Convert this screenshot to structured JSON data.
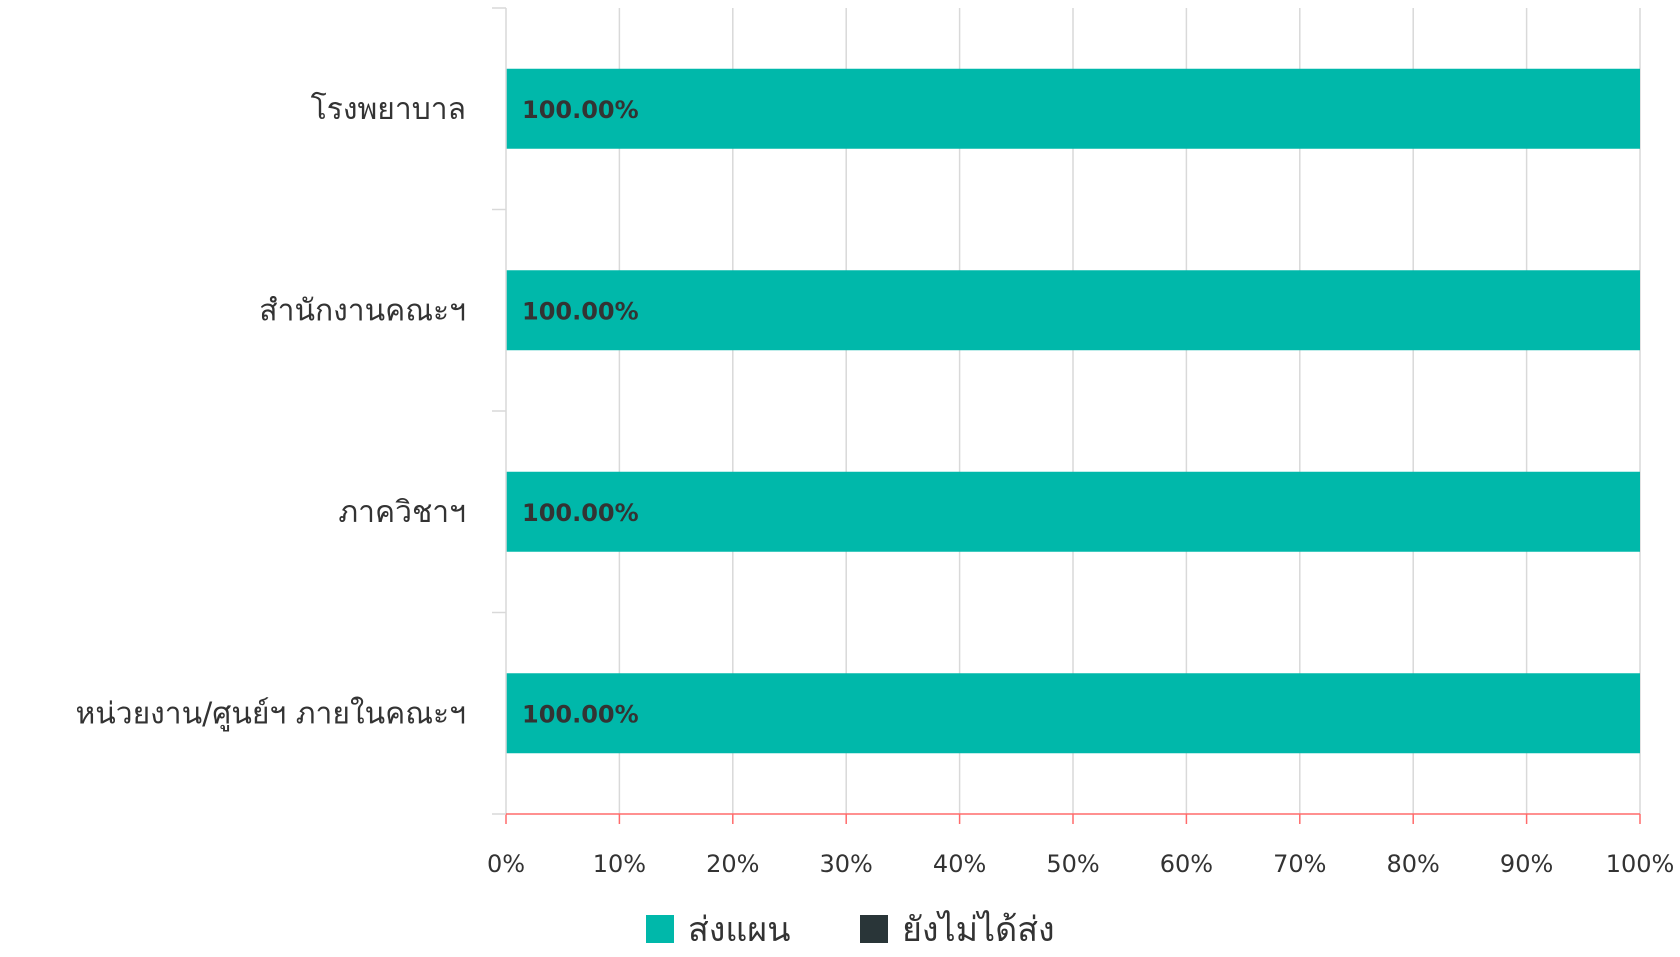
{
  "chart_data": {
    "type": "bar",
    "orientation": "horizontal",
    "stacked": true,
    "categories": [
      "โรงพยาบาล",
      "สำนักงานคณะฯ",
      "ภาควิชาฯ",
      "หน่วยงาน/ศูนย์ฯ ภายในคณะฯ"
    ],
    "series": [
      {
        "name": "ส่งแผน",
        "values": [
          100,
          100,
          100,
          100
        ],
        "color": "#00B8AA"
      },
      {
        "name": "ยังไม่ได้ส่ง",
        "values": [
          0,
          0,
          0,
          0
        ],
        "color": "#293538"
      }
    ],
    "data_labels": [
      "100.00%",
      "100.00%",
      "100.00%",
      "100.00%"
    ],
    "xlim": [
      0,
      100
    ],
    "x_ticks": [
      "0%",
      "10%",
      "20%",
      "30%",
      "40%",
      "50%",
      "60%",
      "70%",
      "80%",
      "90%",
      "100%"
    ],
    "grid": true,
    "legend_position": "bottom",
    "axis_color": "#FF6B6B",
    "grid_color": "#D9D9D9"
  }
}
